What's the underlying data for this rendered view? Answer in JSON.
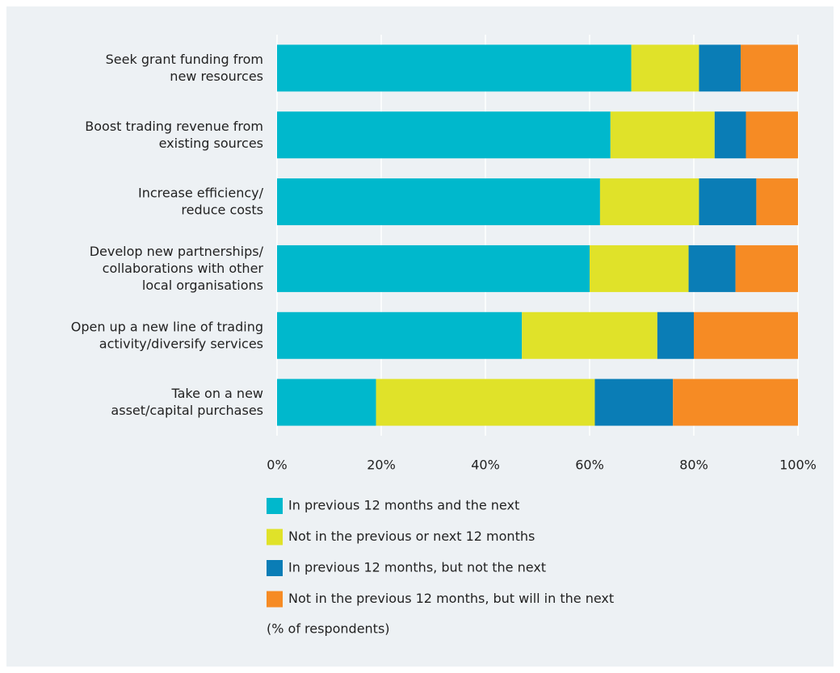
{
  "chart_data": {
    "type": "stacked-barh",
    "categories": [
      "Seek grant funding from\nnew resources",
      "Boost trading revenue from\nexisting sources",
      "Increase efficiency/\nreduce costs",
      "Develop new partnerships/\ncollaborations with other\nlocal organisations",
      "Open up a new line of trading\nactivity/diversify services",
      "Take on a new\nasset/capital purchases"
    ],
    "series": [
      {
        "name": "In previous 12 months and the next",
        "color": "#00b8cc",
        "values": [
          68,
          64,
          62,
          60,
          47,
          19
        ]
      },
      {
        "name": "Not in the previous or next 12 months",
        "color": "#e0e229",
        "values": [
          13,
          20,
          19,
          19,
          26,
          42
        ]
      },
      {
        "name": "In previous 12 months, but not the next",
        "color": "#0a7db6",
        "values": [
          8,
          6,
          11,
          9,
          7,
          15
        ]
      },
      {
        "name": "Not in the previous 12 months, but will in the next",
        "color": "#f68b24",
        "values": [
          11,
          10,
          8,
          12,
          20,
          24
        ]
      }
    ],
    "xlim": [
      0,
      100
    ],
    "xticks": [
      {
        "value": 0,
        "label": "0%"
      },
      {
        "value": 20,
        "label": "20%"
      },
      {
        "value": 40,
        "label": "40%"
      },
      {
        "value": 60,
        "label": "60%"
      },
      {
        "value": 80,
        "label": "80%"
      },
      {
        "value": 100,
        "label": "100%"
      }
    ],
    "grid": true,
    "note": "(% of respondents)"
  }
}
